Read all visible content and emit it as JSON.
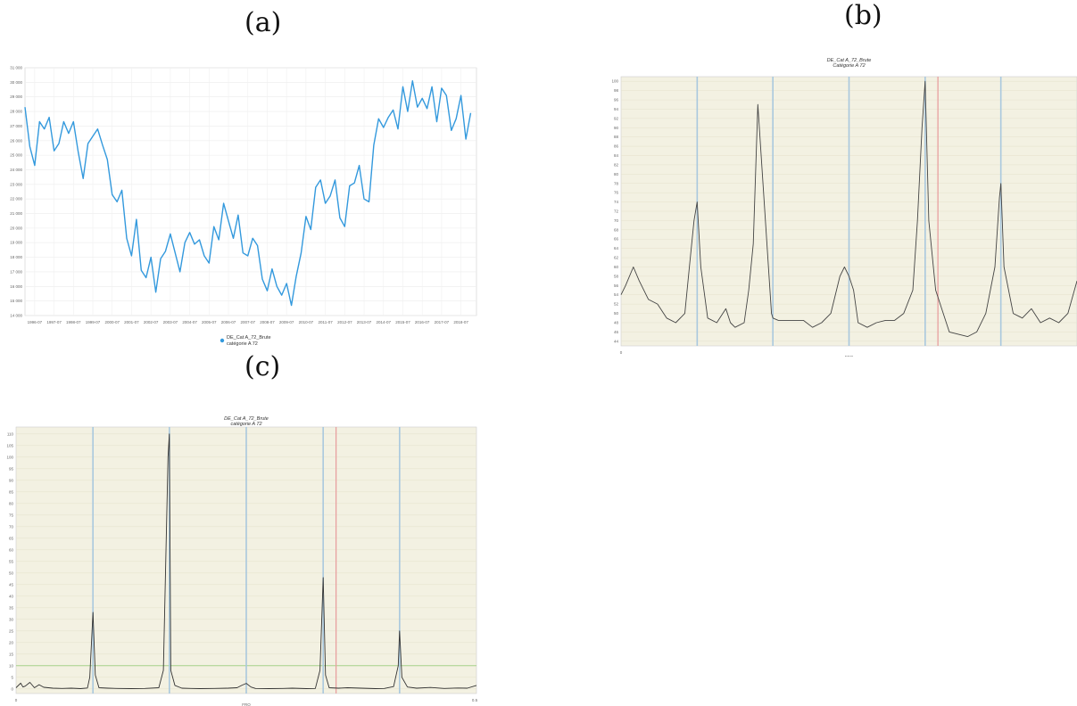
{
  "panels": [
    {
      "label": "(a)"
    },
    {
      "label": "(b)"
    },
    {
      "label": "(c)"
    }
  ],
  "chart_data": [
    {
      "type": "line",
      "panel": "(a)",
      "ylim": [
        14000,
        31000
      ],
      "yticks": [
        "14 000",
        "15 000",
        "16 000",
        "17 000",
        "18 000",
        "19 000",
        "20 000",
        "21 000",
        "22 000",
        "23 000",
        "24 000",
        "25 000",
        "26 000",
        "27 000",
        "28 000",
        "29 000",
        "30 000",
        "31 000"
      ],
      "xticks": [
        "1996-07",
        "1997-07",
        "1998-07",
        "1999-07",
        "2000-07",
        "2001-07",
        "2002-07",
        "2003-07",
        "2004-07",
        "2005-07",
        "2006-07",
        "2007-07",
        "2008-07",
        "2009-07",
        "2010-07",
        "2011-07",
        "2012-07",
        "2013-07",
        "2014-07",
        "2015-07",
        "2016-07",
        "2017-07",
        "2018-07"
      ],
      "xrange": [
        1996.0,
        2019.3
      ],
      "legend": {
        "position": "bottom",
        "line1": "DE_Cat A_72_Brute",
        "line2": "catégorie A 72"
      },
      "series_color": "#3399dd",
      "grid": true,
      "series": [
        {
          "x": [
            1996.0,
            1996.25,
            1996.5,
            1996.75,
            1997.0,
            1997.25,
            1997.5,
            1997.75,
            1998.0,
            1998.25,
            1998.5,
            1998.75,
            1999.0,
            1999.25,
            1999.5,
            1999.75,
            2000.0,
            2000.25,
            2000.5,
            2000.75,
            2001.0,
            2001.25,
            2001.5,
            2001.75,
            2002.0,
            2002.25,
            2002.5,
            2002.75,
            2003.0,
            2003.25,
            2003.5,
            2003.75,
            2004.0,
            2004.25,
            2004.5,
            2004.75,
            2005.0,
            2005.25,
            2005.5,
            2005.75,
            2006.0,
            2006.25,
            2006.5,
            2006.75,
            2007.0,
            2007.25,
            2007.5,
            2007.75,
            2008.0,
            2008.25,
            2008.5,
            2008.75,
            2009.0,
            2009.25,
            2009.5,
            2009.75,
            2010.0,
            2010.25,
            2010.5,
            2010.75,
            2011.0,
            2011.25,
            2011.5,
            2011.75,
            2012.0,
            2012.25,
            2012.5,
            2012.75,
            2013.0,
            2013.25,
            2013.5,
            2013.75,
            2014.0,
            2014.25,
            2014.5,
            2014.75,
            2015.0,
            2015.25,
            2015.5,
            2015.75,
            2016.0,
            2016.25,
            2016.5,
            2016.75,
            2017.0,
            2017.25,
            2017.5,
            2017.75,
            2018.0,
            2018.25,
            2018.5,
            2018.75,
            2019.0
          ],
          "y": [
            28300,
            25600,
            24300,
            27300,
            26800,
            27600,
            25300,
            25800,
            27300,
            26500,
            27300,
            25200,
            23400,
            25800,
            26300,
            26800,
            25700,
            24700,
            22300,
            21800,
            22600,
            19300,
            18100,
            20600,
            17100,
            16600,
            18000,
            15600,
            17900,
            18400,
            19600,
            18300,
            17000,
            19000,
            19700,
            18900,
            19200,
            18100,
            17600,
            20100,
            19200,
            21700,
            20500,
            19300,
            20900,
            18300,
            18100,
            19300,
            18800,
            16500,
            15700,
            17200,
            16000,
            15400,
            16200,
            14700,
            16700,
            18300,
            20800,
            19900,
            22800,
            23300,
            21700,
            22200,
            23300,
            20700,
            20100,
            22900,
            23100,
            24300,
            22000,
            21800,
            25700,
            27500,
            26900,
            27600,
            28100,
            26800,
            29700,
            28000,
            30100,
            28300,
            28900,
            28200,
            29700,
            27300,
            29600,
            29100,
            26700,
            27500,
            29100,
            26100,
            27900
          ]
        }
      ]
    },
    {
      "type": "line",
      "panel": "(b)",
      "title": "DE_Cat A_72_Brute",
      "subtitle": "Catégorie A 72",
      "xlabel": "FRQ",
      "xtick_start": "0",
      "ylim": [
        43,
        101
      ],
      "yticks": [
        "44",
        "46",
        "48",
        "50",
        "52",
        "54",
        "56",
        "58",
        "60",
        "62",
        "64",
        "66",
        "68",
        "70",
        "72",
        "74",
        "76",
        "78",
        "80",
        "82",
        "84",
        "86",
        "88",
        "90",
        "92",
        "94",
        "96",
        "98",
        "100"
      ],
      "background": "#f3f1e2",
      "blue_lines_at": [
        0.167,
        0.333,
        0.5,
        0.667,
        0.833
      ],
      "red_line_at": 0.695,
      "series_color": "#444444",
      "series": [
        {
          "x": [
            0,
            0.01,
            0.027,
            0.04,
            0.06,
            0.08,
            0.1,
            0.12,
            0.14,
            0.15,
            0.16,
            0.167,
            0.175,
            0.19,
            0.21,
            0.23,
            0.24,
            0.25,
            0.27,
            0.28,
            0.29,
            0.3,
            0.32,
            0.33,
            0.333,
            0.345,
            0.36,
            0.38,
            0.4,
            0.42,
            0.44,
            0.46,
            0.48,
            0.49,
            0.5,
            0.51,
            0.52,
            0.54,
            0.56,
            0.58,
            0.6,
            0.62,
            0.64,
            0.65,
            0.66,
            0.667,
            0.675,
            0.69,
            0.72,
            0.76,
            0.78,
            0.8,
            0.82,
            0.83,
            0.833,
            0.84,
            0.86,
            0.88,
            0.9,
            0.92,
            0.94,
            0.96,
            0.98,
            1.0
          ],
          "y": [
            54,
            56,
            60,
            57,
            53,
            52,
            49,
            48,
            50,
            60,
            70,
            74,
            60,
            49,
            48,
            51,
            48,
            47,
            48,
            55,
            65,
            95,
            65,
            50,
            49,
            48.5,
            48.5,
            48.5,
            48.5,
            47,
            48,
            50,
            58,
            60,
            58,
            55,
            48,
            47,
            48,
            48.5,
            48.5,
            50,
            55,
            70,
            90,
            100,
            70,
            55,
            46,
            45,
            46,
            50,
            60,
            75,
            78,
            60,
            50,
            49,
            51,
            48,
            49,
            48,
            50,
            57
          ]
        }
      ]
    },
    {
      "type": "line",
      "panel": "(c)",
      "title": "DE_Cat A_72_Brute",
      "subtitle": "catégorie A 72",
      "xlabel": "FRQ",
      "xtick_start": "0",
      "xtick_end": "0.5",
      "ylim": [
        -2,
        113
      ],
      "yticks": [
        "0",
        "5",
        "10",
        "15",
        "20",
        "25",
        "30",
        "35",
        "40",
        "45",
        "50",
        "55",
        "60",
        "65",
        "70",
        "75",
        "80",
        "85",
        "90",
        "95",
        "100",
        "105",
        "110"
      ],
      "threshold_level": 10,
      "background": "#f3f1e2",
      "blue_lines_at": [
        0.167,
        0.333,
        0.5,
        0.667,
        0.833
      ],
      "red_line_at": 0.695,
      "series_color": "#333333",
      "series": [
        {
          "x": [
            0,
            0.01,
            0.015,
            0.02,
            0.03,
            0.04,
            0.05,
            0.06,
            0.08,
            0.1,
            0.12,
            0.14,
            0.155,
            0.16,
            0.167,
            0.172,
            0.18,
            0.2,
            0.22,
            0.25,
            0.28,
            0.31,
            0.32,
            0.33,
            0.333,
            0.336,
            0.345,
            0.36,
            0.38,
            0.4,
            0.43,
            0.46,
            0.48,
            0.49,
            0.5,
            0.51,
            0.52,
            0.55,
            0.58,
            0.6,
            0.63,
            0.65,
            0.66,
            0.667,
            0.672,
            0.68,
            0.7,
            0.72,
            0.75,
            0.78,
            0.8,
            0.82,
            0.83,
            0.833,
            0.838,
            0.85,
            0.87,
            0.9,
            0.93,
            0.96,
            0.98,
            1.0
          ],
          "y": [
            0.5,
            2.5,
            0.8,
            1.2,
            2.8,
            0.5,
            1.8,
            0.7,
            0.3,
            0.2,
            0.3,
            0.1,
            0.4,
            5,
            33,
            6,
            0.5,
            0.3,
            0.2,
            0.1,
            0.2,
            0.5,
            8,
            100,
            110,
            8,
            1.5,
            0.3,
            0.2,
            0.1,
            0.2,
            0.3,
            0.5,
            1.5,
            2.4,
            0.8,
            0.2,
            0.1,
            0.2,
            0.3,
            0.1,
            0.2,
            8,
            48,
            6,
            0.5,
            0.3,
            0.5,
            0.3,
            0.1,
            0.2,
            1,
            10,
            25,
            5,
            0.8,
            0.3,
            0.6,
            0.2,
            0.4,
            0.3,
            1.5
          ]
        }
      ]
    }
  ]
}
